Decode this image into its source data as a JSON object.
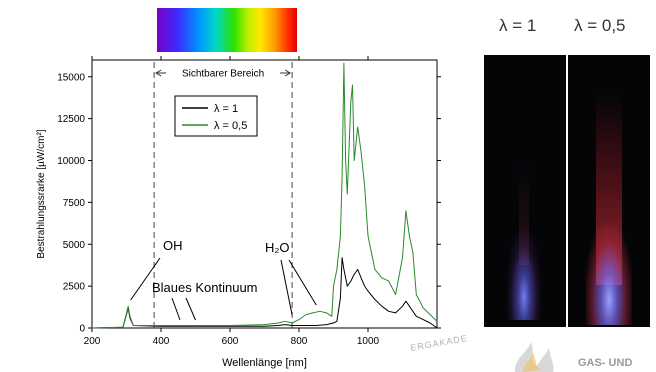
{
  "chart_data": {
    "type": "line",
    "xlabel": "Wellenlänge [nm]",
    "ylabel": "Bestrahlungssrarke [µW/cm²]",
    "xlim": [
      200,
      1200
    ],
    "ylim": [
      0,
      16000
    ],
    "xticks": [
      200,
      400,
      600,
      800,
      1000
    ],
    "yticks": [
      0,
      2500,
      5000,
      7500,
      10000,
      12500,
      15000
    ],
    "legend_position": "top-right",
    "series": [
      {
        "name": "λ = 1",
        "color": "#000000",
        "x": [
          200,
          290,
          305,
          310,
          320,
          400,
          500,
          600,
          700,
          740,
          760,
          780,
          800,
          850,
          880,
          900,
          910,
          920,
          925,
          930,
          940,
          950,
          960,
          970,
          980,
          990,
          1000,
          1020,
          1040,
          1060,
          1080,
          1100,
          1110,
          1120,
          1140,
          1160,
          1180,
          1200
        ],
        "y": [
          0,
          50,
          1200,
          600,
          150,
          100,
          100,
          100,
          100,
          150,
          200,
          150,
          150,
          150,
          200,
          300,
          400,
          1800,
          4200,
          3500,
          2500,
          2800,
          3200,
          3500,
          3000,
          2500,
          2200,
          1700,
          1300,
          1000,
          900,
          1300,
          1600,
          1300,
          700,
          500,
          300,
          0
        ]
      },
      {
        "name": "λ = 0,5",
        "color": "#2a8a2a",
        "x": [
          200,
          290,
          305,
          310,
          320,
          400,
          500,
          600,
          700,
          740,
          760,
          780,
          800,
          820,
          840,
          860,
          880,
          895,
          900,
          910,
          920,
          925,
          930,
          935,
          940,
          950,
          955,
          960,
          970,
          980,
          990,
          1000,
          1020,
          1040,
          1060,
          1080,
          1100,
          1110,
          1120,
          1130,
          1140,
          1160,
          1180,
          1200
        ],
        "y": [
          0,
          50,
          1300,
          700,
          150,
          150,
          150,
          150,
          200,
          300,
          400,
          300,
          500,
          800,
          900,
          1000,
          900,
          700,
          2500,
          3500,
          5500,
          9000,
          15800,
          10000,
          8000,
          13500,
          14500,
          10000,
          12000,
          10500,
          8500,
          5500,
          3500,
          3000,
          2800,
          2000,
          4200,
          7000,
          5500,
          4500,
          2000,
          1200,
          800,
          400
        ]
      }
    ],
    "annotations": [
      {
        "text": "Sichtbarer Bereich",
        "x_range": [
          380,
          780
        ]
      },
      {
        "text": "OH",
        "x": 310
      },
      {
        "text": "Blaues Kontinuum",
        "x": 450
      },
      {
        "text": "H₂O",
        "x": 820
      }
    ]
  },
  "flames": {
    "left_label": "λ = 1",
    "right_label": "λ = 0,5"
  },
  "watermark": {
    "arc_text": "ERGAKADE",
    "brand_text": "GAS- UND"
  }
}
